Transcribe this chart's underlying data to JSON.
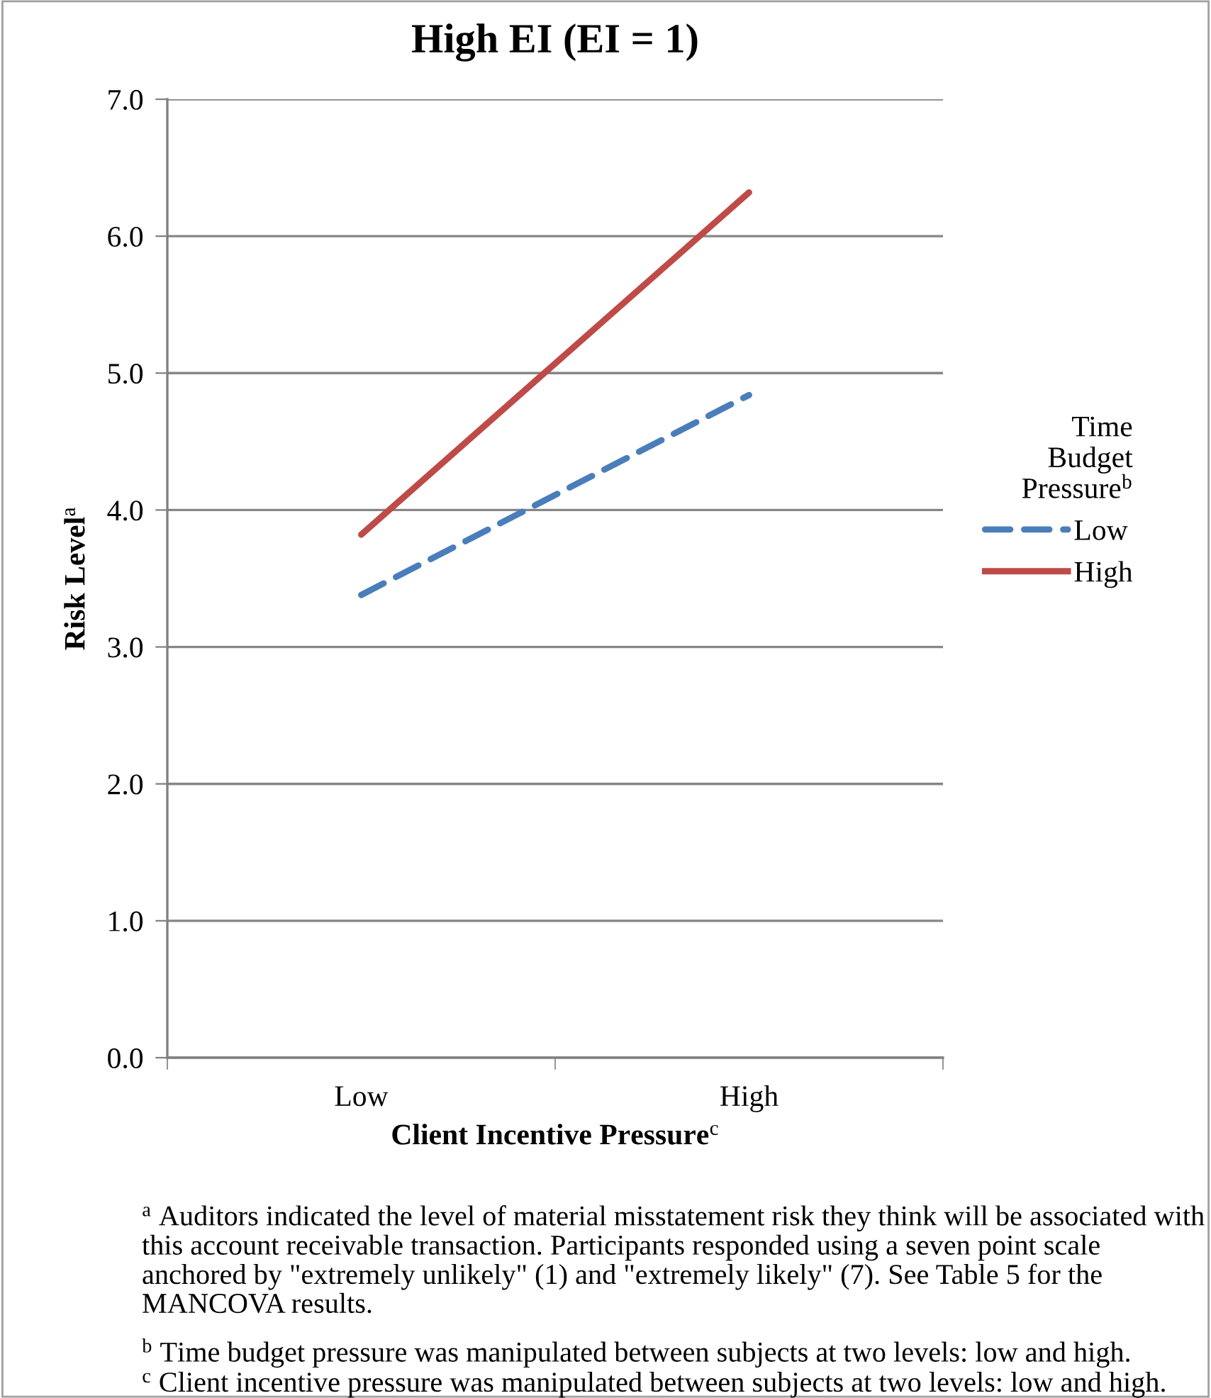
{
  "chart_data": {
    "type": "line",
    "title": "High EI (EI = 1)",
    "xlabel": "Client Incentive Pressure$^{c}$",
    "ylabel": "Risk Level$^{a}$",
    "legend_title": "Time\nBudget\nPressure$^{b}$",
    "categories": [
      "Low",
      "High"
    ],
    "series": [
      {
        "name": "Low",
        "color": "#4a7ebb",
        "values": [
          3.38,
          4.84
        ],
        "line_style": "dashed"
      },
      {
        "name": "High",
        "color": "#be4b48",
        "values": [
          3.82,
          6.32
        ],
        "line_style": "solid"
      }
    ],
    "ylim": [
      0,
      7
    ],
    "yticks": [
      {
        "value": 0,
        "label": "0.0"
      },
      {
        "value": 1,
        "label": "1.0"
      },
      {
        "value": 2,
        "label": "2.0"
      },
      {
        "value": 3,
        "label": "3.0"
      },
      {
        "value": 4,
        "label": "4.0"
      },
      {
        "value": 5,
        "label": "5.0"
      },
      {
        "value": 6,
        "label": "6.0"
      },
      {
        "value": 7,
        "label": "7.0"
      }
    ],
    "grid": "y",
    "legend": "right",
    "marker": "none",
    "annotations": [
      "$^{a}$ Auditors indicated the level of material misstatement risk they think will be associated with this account receivable transaction. Participants responded using a seven point scale anchored by \"extremely unlikely\" (1) and \"extremely likely\" (7). See Table 5 for the MANCOVA results.",
      "$^{b}$ Time budget pressure was manipulated between subjects at two levels: low and high.",
      "$^{c}$ Client incentive pressure was manipulated between subjects at two levels: low and high."
    ]
  }
}
